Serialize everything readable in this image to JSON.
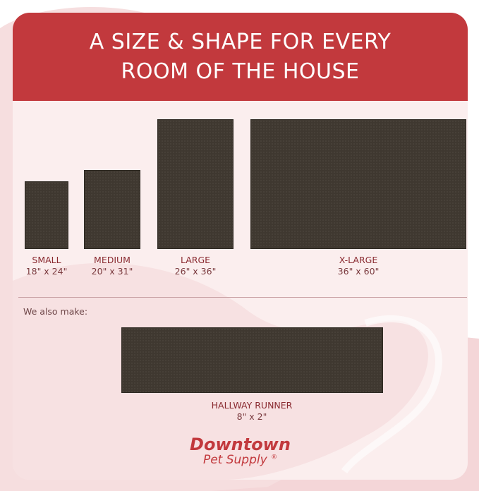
{
  "header": {
    "line1": "A SIZE & SHAPE FOR EVERY",
    "line2": "ROOM OF THE HOUSE"
  },
  "sizes": [
    {
      "name": "SMALL",
      "dims": "18\" x 24\""
    },
    {
      "name": "MEDIUM",
      "dims": "20\" x 31\""
    },
    {
      "name": "LARGE",
      "dims": "26\" x 36\""
    },
    {
      "name": "X-LARGE",
      "dims": "36\" x 60\""
    }
  ],
  "also_label": "We also make:",
  "runner": {
    "name": "HALLWAY RUNNER",
    "dims": "8\" x 2\""
  },
  "logo": {
    "line1": "Downtown",
    "line2": "Pet Supply",
    "mark": "®"
  },
  "colors": {
    "accent": "#c2393d",
    "mat": "#3f3830",
    "background": "#fbeeee"
  }
}
